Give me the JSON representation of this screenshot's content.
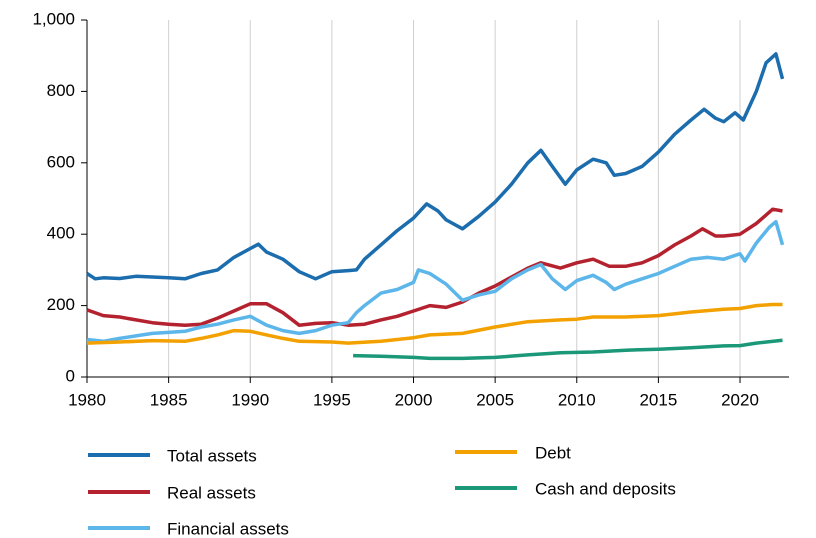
{
  "chart_data": {
    "type": "line",
    "xlim": [
      1980,
      2023
    ],
    "xticks": [
      1980,
      1985,
      1990,
      1995,
      2000,
      2005,
      2010,
      2015,
      2020
    ],
    "ylim": [
      0,
      1000
    ],
    "yticks": [
      0,
      200,
      400,
      600,
      800,
      {
        "value": 1000,
        "label": "1,000"
      }
    ],
    "grid": "x",
    "series": [
      {
        "name": "Total assets",
        "color": "#1b6dae",
        "x": [
          1980,
          1980.5,
          1981,
          1982,
          1983,
          1984,
          1985,
          1986,
          1987,
          1988,
          1989,
          1990,
          1990.5,
          1991,
          1992,
          1993,
          1994,
          1995,
          1996,
          1996.5,
          1997,
          1998,
          1999,
          2000,
          2000.8,
          2001.5,
          2002,
          2003,
          2004,
          2005,
          2006,
          2007,
          2007.8,
          2008.5,
          2009.3,
          2010,
          2011,
          2011.8,
          2012.3,
          2013,
          2014,
          2015,
          2016,
          2017,
          2017.8,
          2018.5,
          2019,
          2019.7,
          2020.2,
          2021,
          2021.6,
          2022.2,
          2022.6
        ],
        "values": [
          290,
          275,
          278,
          276,
          282,
          280,
          278,
          275,
          290,
          300,
          335,
          360,
          372,
          350,
          330,
          295,
          275,
          295,
          298,
          300,
          330,
          370,
          410,
          445,
          485,
          465,
          440,
          415,
          450,
          490,
          540,
          600,
          635,
          590,
          540,
          580,
          610,
          600,
          565,
          570,
          590,
          630,
          680,
          720,
          750,
          725,
          715,
          740,
          720,
          800,
          880,
          905,
          835
        ]
      },
      {
        "name": "Real assets",
        "color": "#b3222e",
        "x": [
          1980,
          1981,
          1982,
          1983,
          1984,
          1985,
          1986,
          1987,
          1988,
          1989,
          1990,
          1991,
          1992,
          1993,
          1994,
          1995,
          1996,
          1997,
          1998,
          1999,
          2000,
          2001,
          2002,
          2003,
          2004,
          2005,
          2006,
          2007,
          2007.8,
          2009,
          2010,
          2011,
          2012,
          2013,
          2014,
          2015,
          2016,
          2017,
          2017.7,
          2018.5,
          2019,
          2020,
          2021,
          2022,
          2022.6
        ],
        "values": [
          188,
          172,
          168,
          160,
          152,
          148,
          145,
          148,
          165,
          185,
          205,
          205,
          180,
          145,
          150,
          152,
          145,
          148,
          160,
          170,
          185,
          200,
          195,
          210,
          235,
          255,
          280,
          305,
          320,
          305,
          320,
          330,
          310,
          310,
          320,
          340,
          370,
          395,
          415,
          395,
          395,
          400,
          430,
          470,
          465
        ]
      },
      {
        "name": "Financial assets",
        "color": "#5cb6ea",
        "x": [
          1980,
          1981,
          1982,
          1983,
          1984,
          1985,
          1986,
          1987,
          1988,
          1989,
          1990,
          1991,
          1992,
          1993,
          1994,
          1995,
          1996,
          1996.5,
          1997,
          1998,
          1999,
          2000,
          2000.3,
          2001,
          2002,
          2003,
          2004,
          2005,
          2006,
          2007,
          2007.8,
          2008.5,
          2009.3,
          2010,
          2011,
          2011.8,
          2012.3,
          2013,
          2014,
          2015,
          2016,
          2017,
          2018,
          2019,
          2020,
          2020.3,
          2021,
          2021.8,
          2022.2,
          2022.6
        ],
        "values": [
          105,
          100,
          108,
          115,
          122,
          125,
          128,
          140,
          148,
          160,
          170,
          145,
          130,
          122,
          130,
          145,
          152,
          180,
          200,
          235,
          245,
          265,
          300,
          290,
          260,
          215,
          230,
          240,
          275,
          300,
          315,
          275,
          245,
          270,
          285,
          265,
          245,
          260,
          275,
          290,
          310,
          330,
          335,
          330,
          345,
          325,
          375,
          420,
          435,
          370
        ]
      },
      {
        "name": "Debt",
        "color": "#f2a100",
        "x": [
          1980,
          1982,
          1984,
          1986,
          1987,
          1988,
          1989,
          1990,
          1991,
          1992,
          1993,
          1995,
          1996,
          1998,
          2000,
          2001,
          2003,
          2005,
          2007,
          2009,
          2010,
          2011,
          2013,
          2015,
          2017,
          2019,
          2020,
          2021,
          2022,
          2022.6
        ],
        "values": [
          95,
          98,
          102,
          100,
          108,
          118,
          130,
          128,
          118,
          108,
          100,
          98,
          95,
          100,
          110,
          118,
          122,
          140,
          155,
          160,
          162,
          168,
          168,
          172,
          182,
          190,
          192,
          200,
          203,
          203
        ]
      },
      {
        "name": "Cash and deposits",
        "color": "#1a9878",
        "x": [
          1996.3,
          1998,
          2000,
          2001,
          2003,
          2005,
          2007,
          2009,
          2011,
          2013,
          2015,
          2017,
          2019,
          2020,
          2021,
          2022.6
        ],
        "values": [
          60,
          58,
          55,
          52,
          52,
          55,
          62,
          68,
          70,
          75,
          78,
          82,
          87,
          88,
          95,
          103
        ]
      }
    ]
  }
}
